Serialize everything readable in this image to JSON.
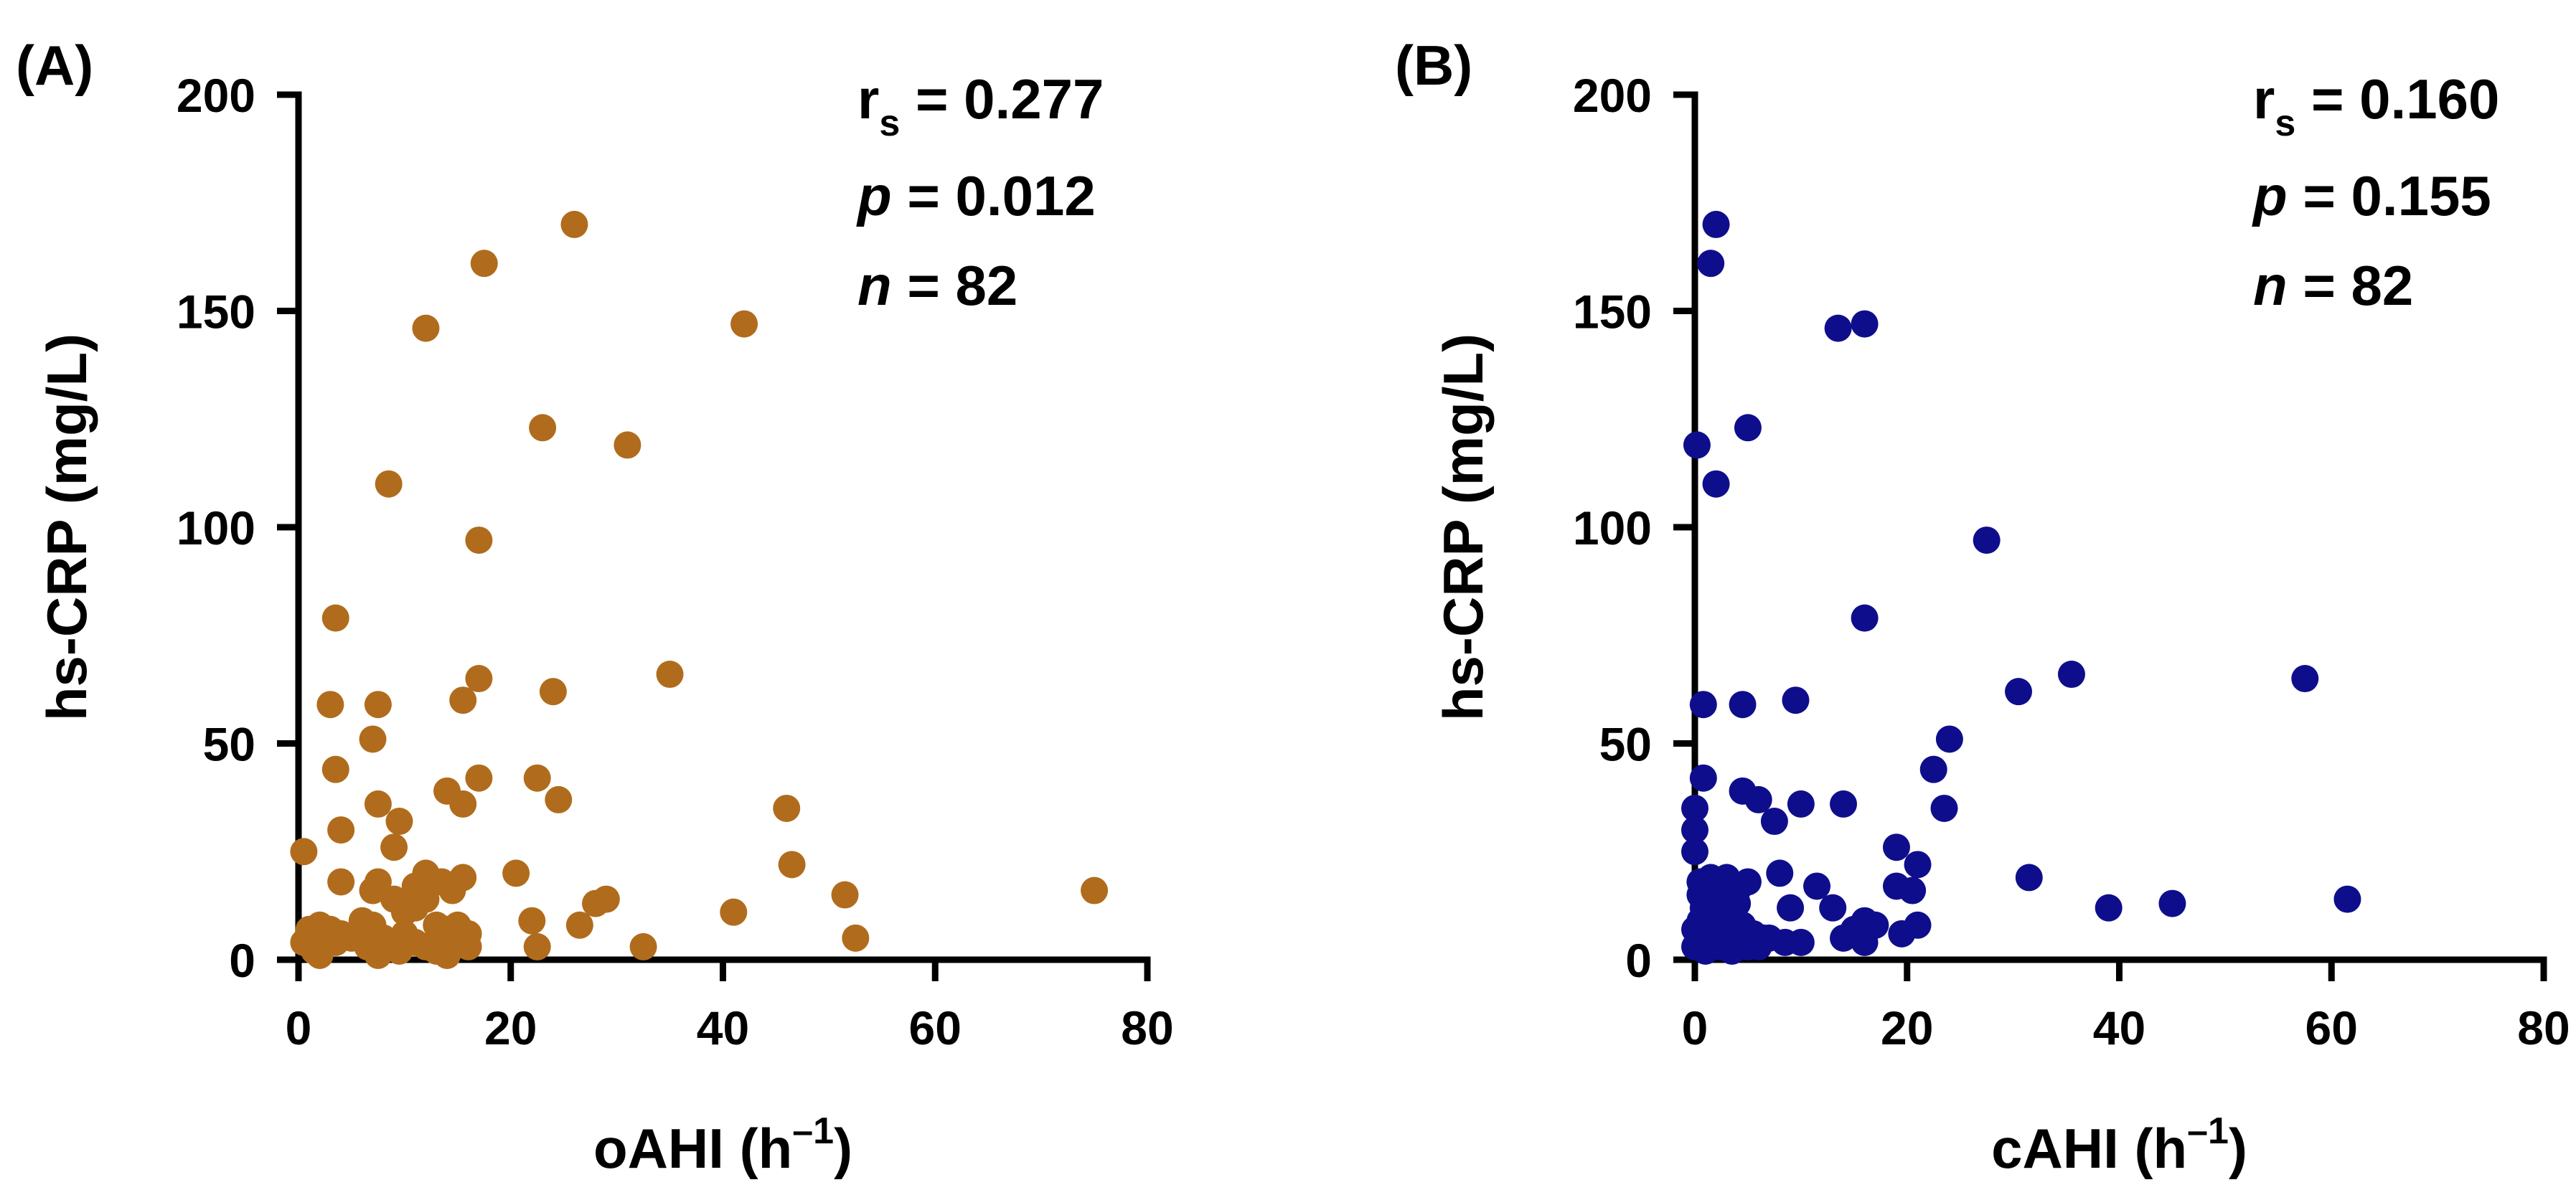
{
  "chart_data": [
    {
      "type": "scatter",
      "panel_label": "(A)",
      "color": "#B06C1C",
      "xlabel": "oAHI",
      "xlabel_unit_open": "(h",
      "xlabel_unit_exp": "–1",
      "xlabel_unit_close": ")",
      "ylabel": "hs-CRP (mg/L)",
      "xlim": [
        0,
        80
      ],
      "ylim": [
        0,
        200
      ],
      "xticks": [
        0,
        20,
        40,
        60,
        80
      ],
      "yticks": [
        0,
        50,
        100,
        150,
        200
      ],
      "xtick_labels": [
        "0",
        "20",
        "40",
        "60",
        "80"
      ],
      "ytick_labels": [
        "0",
        "50",
        "100",
        "150",
        "200"
      ],
      "stats": {
        "rs_label": "r",
        "rs_sub": "s",
        "rs_value": " = 0.277",
        "p_label": "p",
        "p_value": " = 0.012",
        "n_label": "n",
        "n_value": " = 82"
      },
      "points": [
        [
          26,
          170
        ],
        [
          17.5,
          161
        ],
        [
          12,
          146
        ],
        [
          42,
          147
        ],
        [
          23,
          123
        ],
        [
          31,
          119
        ],
        [
          8.5,
          110
        ],
        [
          17,
          97
        ],
        [
          3.5,
          79
        ],
        [
          35,
          66
        ],
        [
          17,
          65
        ],
        [
          24,
          62
        ],
        [
          3,
          59
        ],
        [
          7.5,
          59
        ],
        [
          15.5,
          60
        ],
        [
          7,
          51
        ],
        [
          3.5,
          44
        ],
        [
          17,
          42
        ],
        [
          22.5,
          42
        ],
        [
          24.5,
          37
        ],
        [
          7.5,
          36
        ],
        [
          15.5,
          36
        ],
        [
          46,
          35
        ],
        [
          14,
          39
        ],
        [
          9.5,
          32
        ],
        [
          4,
          30
        ],
        [
          0.5,
          25
        ],
        [
          9,
          26
        ],
        [
          46.5,
          22
        ],
        [
          20.5,
          20
        ],
        [
          12,
          20
        ],
        [
          15.5,
          19
        ],
        [
          4,
          18
        ],
        [
          7.5,
          18
        ],
        [
          13.5,
          18
        ],
        [
          11,
          17
        ],
        [
          14.5,
          16
        ],
        [
          7,
          16
        ],
        [
          9,
          14
        ],
        [
          12,
          14
        ],
        [
          29,
          14
        ],
        [
          28,
          13
        ],
        [
          51.5,
          15
        ],
        [
          75,
          16
        ],
        [
          41,
          11
        ],
        [
          11,
          12
        ],
        [
          10,
          11
        ],
        [
          22,
          9
        ],
        [
          26.5,
          8
        ],
        [
          2,
          8
        ],
        [
          1,
          7
        ],
        [
          3,
          7
        ],
        [
          6,
          9
        ],
        [
          7,
          8
        ],
        [
          13,
          8
        ],
        [
          14,
          7
        ],
        [
          15,
          8
        ],
        [
          16,
          6
        ],
        [
          4,
          6
        ],
        [
          2.5,
          5
        ],
        [
          5,
          5
        ],
        [
          8,
          5
        ],
        [
          11,
          4
        ],
        [
          52.5,
          5
        ],
        [
          1.5,
          3
        ],
        [
          0.5,
          4
        ],
        [
          3.5,
          4
        ],
        [
          6.5,
          3
        ],
        [
          12,
          3
        ],
        [
          14,
          4
        ],
        [
          16,
          3
        ],
        [
          22.5,
          3
        ],
        [
          32.5,
          3
        ],
        [
          2,
          1
        ],
        [
          7.5,
          1
        ],
        [
          14,
          1
        ],
        [
          1.5,
          2
        ],
        [
          10,
          6
        ],
        [
          6,
          6
        ],
        [
          0.8,
          5
        ],
        [
          9.5,
          2
        ],
        [
          13,
          2
        ]
      ]
    },
    {
      "type": "scatter",
      "panel_label": "(B)",
      "color": "#0E0E8C",
      "xlabel": "cAHI",
      "xlabel_unit_open": "(h",
      "xlabel_unit_exp": "–1",
      "xlabel_unit_close": ")",
      "ylabel": "hs-CRP (mg/L)",
      "xlim": [
        0,
        80
      ],
      "ylim": [
        0,
        200
      ],
      "xticks": [
        0,
        20,
        40,
        60,
        80
      ],
      "yticks": [
        0,
        50,
        100,
        150,
        200
      ],
      "xtick_labels": [
        "0",
        "20",
        "40",
        "60",
        "80"
      ],
      "ytick_labels": [
        "0",
        "50",
        "100",
        "150",
        "200"
      ],
      "stats": {
        "rs_label": "r",
        "rs_sub": "s",
        "rs_value": " = 0.160",
        "p_label": "p",
        "p_value": " = 0.155",
        "n_label": "n",
        "n_value": " = 82"
      },
      "points": [
        [
          2,
          170
        ],
        [
          1.5,
          161
        ],
        [
          13.5,
          146
        ],
        [
          16,
          147
        ],
        [
          5,
          123
        ],
        [
          0.2,
          119
        ],
        [
          2,
          110
        ],
        [
          27.5,
          97
        ],
        [
          16,
          79
        ],
        [
          35.5,
          66
        ],
        [
          57.5,
          65
        ],
        [
          30.5,
          62
        ],
        [
          0.8,
          59
        ],
        [
          4.5,
          59
        ],
        [
          9.5,
          60
        ],
        [
          24,
          51
        ],
        [
          22.5,
          44
        ],
        [
          0.8,
          42
        ],
        [
          23.5,
          35
        ],
        [
          0,
          35
        ],
        [
          10,
          36
        ],
        [
          14,
          36
        ],
        [
          6,
          37
        ],
        [
          4.5,
          39
        ],
        [
          7.5,
          32
        ],
        [
          0,
          30
        ],
        [
          0,
          25
        ],
        [
          19,
          26
        ],
        [
          21,
          22
        ],
        [
          31.5,
          19
        ],
        [
          8,
          20
        ],
        [
          11.5,
          17
        ],
        [
          19,
          17
        ],
        [
          20.5,
          16
        ],
        [
          1.5,
          19
        ],
        [
          3,
          19
        ],
        [
          5,
          18
        ],
        [
          0.5,
          18
        ],
        [
          2.5,
          17
        ],
        [
          4,
          16
        ],
        [
          0.5,
          15
        ],
        [
          1,
          14
        ],
        [
          61.5,
          14
        ],
        [
          45,
          13
        ],
        [
          39,
          12
        ],
        [
          13,
          12
        ],
        [
          9,
          12
        ],
        [
          16,
          9
        ],
        [
          17,
          8
        ],
        [
          21,
          8
        ],
        [
          15,
          7
        ],
        [
          19.5,
          6
        ],
        [
          0.5,
          9
        ],
        [
          1.5,
          8
        ],
        [
          3,
          8
        ],
        [
          4.5,
          8
        ],
        [
          0,
          7
        ],
        [
          2,
          6
        ],
        [
          3.5,
          6
        ],
        [
          5.5,
          6
        ],
        [
          6.5,
          5
        ],
        [
          8.5,
          4
        ],
        [
          10,
          4
        ],
        [
          14,
          5
        ],
        [
          16,
          4
        ],
        [
          0,
          3
        ],
        [
          1,
          2
        ],
        [
          2.5,
          3
        ],
        [
          3.5,
          2
        ],
        [
          4.5,
          4
        ],
        [
          5,
          3
        ],
        [
          6,
          3
        ],
        [
          7,
          5
        ],
        [
          1.5,
          10
        ],
        [
          2.5,
          11
        ],
        [
          4,
          13
        ],
        [
          0.8,
          12
        ],
        [
          2,
          13
        ],
        [
          3,
          14
        ],
        [
          1.2,
          4
        ],
        [
          2.8,
          5
        ],
        [
          3.8,
          7
        ]
      ]
    }
  ]
}
